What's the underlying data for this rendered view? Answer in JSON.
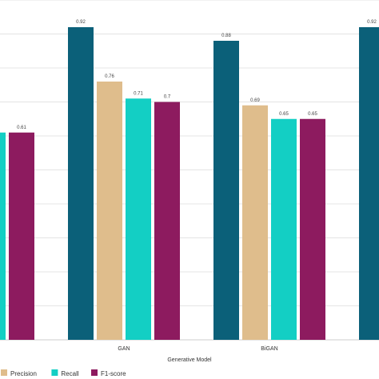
{
  "chart_data": {
    "type": "bar",
    "categories": [
      "",
      "GAN",
      "BiGAN",
      ""
    ],
    "series": [
      {
        "name": "",
        "color": "#0b6079",
        "values": [
          null,
          0.92,
          0.88,
          0.92
        ]
      },
      {
        "name": "Precision",
        "color": "#dfbd8c",
        "values": [
          null,
          0.76,
          0.69,
          null
        ]
      },
      {
        "name": "Recall",
        "color": "#13cfc4",
        "values": [
          0.61,
          0.71,
          0.65,
          null
        ]
      },
      {
        "name": "F1-score",
        "color": "#8d1b5f",
        "values": [
          0.61,
          0.7,
          0.65,
          null
        ]
      }
    ],
    "data_labels": [
      [
        null,
        "0.92",
        "0.88",
        "0.92"
      ],
      [
        null,
        "0.76",
        "0.69",
        null
      ],
      [
        null,
        "0.71",
        "0.65",
        null
      ],
      [
        "0.61",
        "0.7",
        "0.65",
        null
      ]
    ],
    "xlabel": "Generative Model",
    "ylabel": "",
    "ylim": [
      0,
      1.0
    ],
    "grid": true,
    "legend_position": "bottom-left"
  }
}
